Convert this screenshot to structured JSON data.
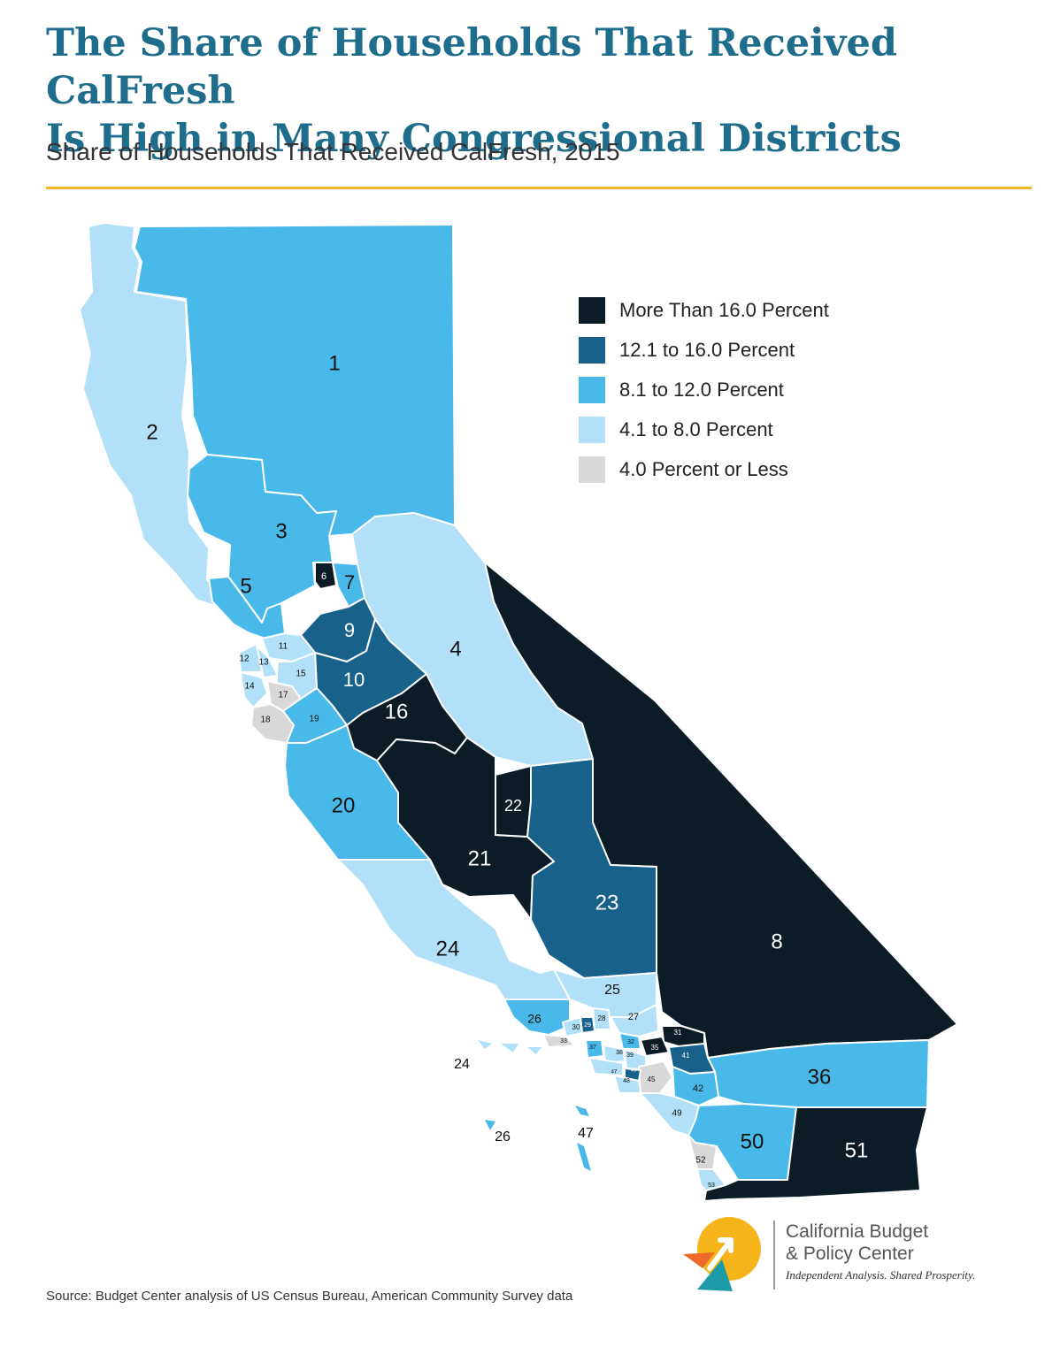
{
  "title": {
    "line1": "The Share of Households That Received CalFresh",
    "line2": "Is High in Many Congressional Districts"
  },
  "subtitle": "Share of Households That Received CalFresh, 2015",
  "legend": [
    {
      "key": "gt16",
      "label": "More Than 16.0 Percent",
      "color": "#0b1c26"
    },
    {
      "key": "12to16",
      "label": "12.1 to 16.0 Percent",
      "color": "#17618b"
    },
    {
      "key": "8to12",
      "label": "8.1 to 12.0 Percent",
      "color": "#49b9ea"
    },
    {
      "key": "4to8",
      "label": "4.1 to 8.0 Percent",
      "color": "#b1e0f8"
    },
    {
      "key": "le4",
      "label": "4.0 Percent or Less",
      "color": "#d8d8d8"
    }
  ],
  "districts": [
    {
      "id": "1",
      "label": "1",
      "category": "8to12"
    },
    {
      "id": "2",
      "label": "2",
      "category": "4to8"
    },
    {
      "id": "3",
      "label": "3",
      "category": "8to12"
    },
    {
      "id": "4",
      "label": "4",
      "category": "4to8"
    },
    {
      "id": "5",
      "label": "5",
      "category": "8to12"
    },
    {
      "id": "6",
      "label": "6",
      "category": "gt16"
    },
    {
      "id": "7",
      "label": "7",
      "category": "8to12"
    },
    {
      "id": "8",
      "label": "8",
      "category": "gt16"
    },
    {
      "id": "9",
      "label": "9",
      "category": "12to16"
    },
    {
      "id": "10",
      "label": "10",
      "category": "12to16"
    },
    {
      "id": "11",
      "label": "11",
      "category": "4to8"
    },
    {
      "id": "12",
      "label": "12",
      "category": "4to8"
    },
    {
      "id": "13",
      "label": "13",
      "category": "4to8"
    },
    {
      "id": "14",
      "label": "14",
      "category": "4to8"
    },
    {
      "id": "15",
      "label": "15",
      "category": "4to8"
    },
    {
      "id": "16",
      "label": "16",
      "category": "gt16"
    },
    {
      "id": "17",
      "label": "17",
      "category": "le4"
    },
    {
      "id": "18",
      "label": "18",
      "category": "le4"
    },
    {
      "id": "19",
      "label": "19",
      "category": "8to12"
    },
    {
      "id": "20",
      "label": "20",
      "category": "8to12"
    },
    {
      "id": "21",
      "label": "21",
      "category": "gt16"
    },
    {
      "id": "22",
      "label": "22",
      "category": "gt16"
    },
    {
      "id": "23",
      "label": "23",
      "category": "12to16"
    },
    {
      "id": "24",
      "label": "24",
      "category": "4to8"
    },
    {
      "id": "25",
      "label": "25",
      "category": "4to8"
    },
    {
      "id": "26",
      "label": "26",
      "category": "8to12"
    },
    {
      "id": "27",
      "label": "27",
      "category": "4to8"
    },
    {
      "id": "28",
      "label": "28",
      "category": "4to8"
    },
    {
      "id": "29",
      "label": "29",
      "category": "12to16"
    },
    {
      "id": "30",
      "label": "30",
      "category": "4to8"
    },
    {
      "id": "31",
      "label": "31",
      "category": "gt16"
    },
    {
      "id": "32",
      "label": "32",
      "category": "8to12"
    },
    {
      "id": "33",
      "label": "33",
      "category": "le4"
    },
    {
      "id": "35",
      "label": "35",
      "category": "gt16"
    },
    {
      "id": "36",
      "label": "36",
      "category": "8to12"
    },
    {
      "id": "37",
      "label": "37",
      "category": "8to12"
    },
    {
      "id": "38",
      "label": "38",
      "category": "4to8"
    },
    {
      "id": "39",
      "label": "39",
      "category": "4to8"
    },
    {
      "id": "41",
      "label": "41",
      "category": "12to16"
    },
    {
      "id": "42",
      "label": "42",
      "category": "8to12"
    },
    {
      "id": "45",
      "label": "45",
      "category": "le4"
    },
    {
      "id": "46",
      "label": "46",
      "category": "12to16"
    },
    {
      "id": "47",
      "label": "47",
      "category": "4to8"
    },
    {
      "id": "48",
      "label": "48",
      "category": "4to8"
    },
    {
      "id": "49",
      "label": "49",
      "category": "4to8"
    },
    {
      "id": "50",
      "label": "50",
      "category": "8to12"
    },
    {
      "id": "51",
      "label": "51",
      "category": "gt16"
    },
    {
      "id": "52",
      "label": "52",
      "category": "le4"
    },
    {
      "id": "53",
      "label": "53",
      "category": "4to8"
    }
  ],
  "island_labels": [
    {
      "id": "isl-24",
      "label": "24"
    },
    {
      "id": "isl-26",
      "label": "26"
    },
    {
      "id": "isl-47",
      "label": "47"
    }
  ],
  "source": "Source: Budget Center analysis of US Census Bureau, American Community Survey data",
  "logo": {
    "name_line1": "California Budget",
    "name_line2": "& Policy Center",
    "tagline": "Independent Analysis. Shared Prosperity.",
    "colors": {
      "yellow": "#f4b41a",
      "orange": "#ee6a2c",
      "teal": "#1c9aa6"
    }
  }
}
